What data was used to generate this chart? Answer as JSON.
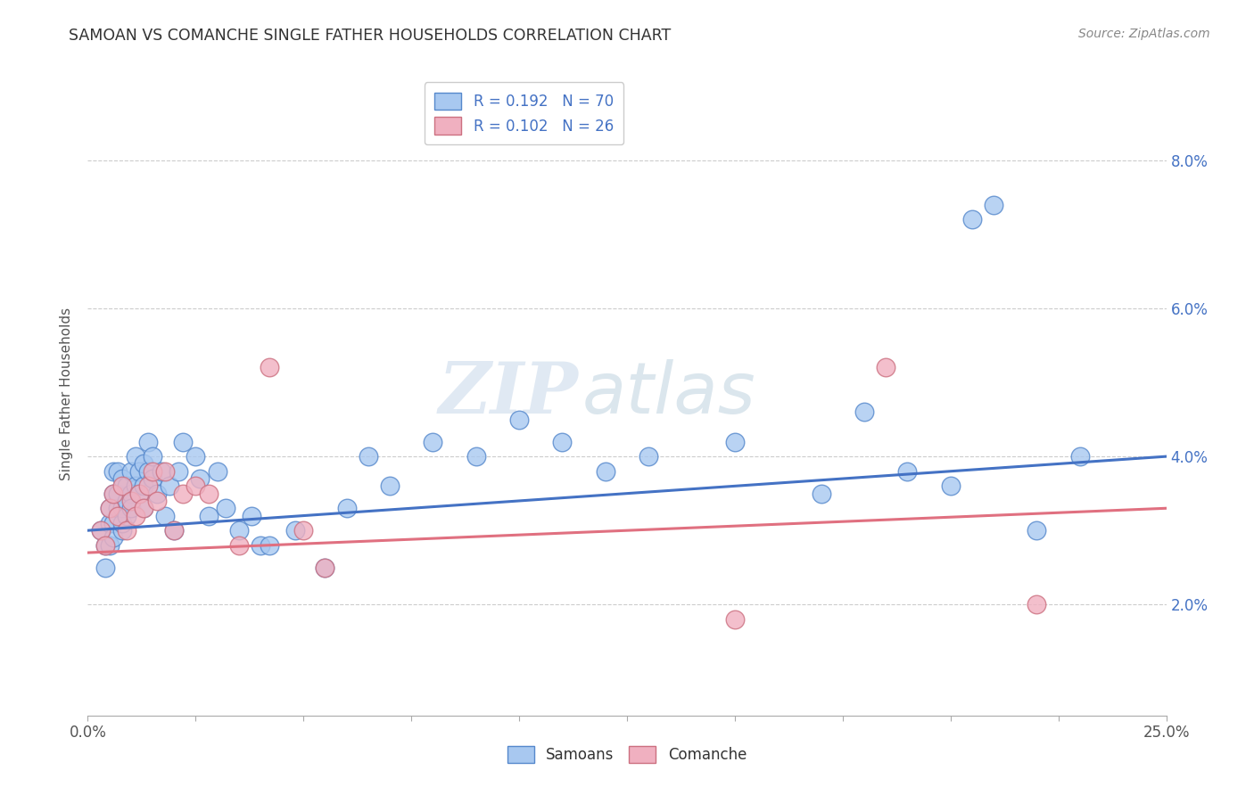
{
  "title": "SAMOAN VS COMANCHE SINGLE FATHER HOUSEHOLDS CORRELATION CHART",
  "source": "Source: ZipAtlas.com",
  "ylabel": "Single Father Households",
  "ytick_values": [
    0.02,
    0.04,
    0.06,
    0.08
  ],
  "xlim": [
    0.0,
    0.25
  ],
  "ylim": [
    0.005,
    0.092
  ],
  "watermark_zip": "ZIP",
  "watermark_atlas": "atlas",
  "legend_samoans_R": "R = 0.192",
  "legend_samoans_N": "N = 70",
  "legend_comanche_R": "R = 0.102",
  "legend_comanche_N": "N = 26",
  "legend_label_samoans": "Samoans",
  "legend_label_comanche": "Comanche",
  "color_samoans_fill": "#a8c8f0",
  "color_comanche_fill": "#f0b0c0",
  "color_samoans_edge": "#5588cc",
  "color_comanche_edge": "#cc7080",
  "color_samoans_line": "#4472c4",
  "color_comanche_line": "#e07080",
  "color_ytick": "#4472c4",
  "samoans_x": [
    0.003,
    0.004,
    0.004,
    0.005,
    0.005,
    0.005,
    0.006,
    0.006,
    0.006,
    0.006,
    0.007,
    0.007,
    0.007,
    0.008,
    0.008,
    0.008,
    0.008,
    0.009,
    0.009,
    0.009,
    0.01,
    0.01,
    0.01,
    0.011,
    0.011,
    0.012,
    0.012,
    0.013,
    0.013,
    0.013,
    0.014,
    0.014,
    0.015,
    0.015,
    0.016,
    0.017,
    0.018,
    0.019,
    0.02,
    0.021,
    0.022,
    0.025,
    0.026,
    0.028,
    0.03,
    0.032,
    0.035,
    0.038,
    0.04,
    0.042,
    0.048,
    0.055,
    0.06,
    0.065,
    0.07,
    0.08,
    0.09,
    0.1,
    0.11,
    0.12,
    0.13,
    0.15,
    0.17,
    0.18,
    0.19,
    0.2,
    0.205,
    0.21,
    0.22,
    0.23
  ],
  "samoans_y": [
    0.03,
    0.028,
    0.025,
    0.031,
    0.028,
    0.033,
    0.031,
    0.029,
    0.035,
    0.038,
    0.033,
    0.035,
    0.038,
    0.03,
    0.031,
    0.033,
    0.037,
    0.032,
    0.034,
    0.036,
    0.038,
    0.035,
    0.033,
    0.04,
    0.036,
    0.038,
    0.035,
    0.033,
    0.036,
    0.039,
    0.042,
    0.038,
    0.037,
    0.04,
    0.035,
    0.038,
    0.032,
    0.036,
    0.03,
    0.038,
    0.042,
    0.04,
    0.037,
    0.032,
    0.038,
    0.033,
    0.03,
    0.032,
    0.028,
    0.028,
    0.03,
    0.025,
    0.033,
    0.04,
    0.036,
    0.042,
    0.04,
    0.045,
    0.042,
    0.038,
    0.04,
    0.042,
    0.035,
    0.046,
    0.038,
    0.036,
    0.072,
    0.074,
    0.03,
    0.04
  ],
  "comanche_x": [
    0.003,
    0.004,
    0.005,
    0.006,
    0.007,
    0.008,
    0.009,
    0.01,
    0.011,
    0.012,
    0.013,
    0.014,
    0.015,
    0.016,
    0.018,
    0.02,
    0.022,
    0.025,
    0.028,
    0.035,
    0.042,
    0.05,
    0.055,
    0.15,
    0.185,
    0.22
  ],
  "comanche_y": [
    0.03,
    0.028,
    0.033,
    0.035,
    0.032,
    0.036,
    0.03,
    0.034,
    0.032,
    0.035,
    0.033,
    0.036,
    0.038,
    0.034,
    0.038,
    0.03,
    0.035,
    0.036,
    0.035,
    0.028,
    0.052,
    0.03,
    0.025,
    0.018,
    0.052,
    0.02
  ]
}
